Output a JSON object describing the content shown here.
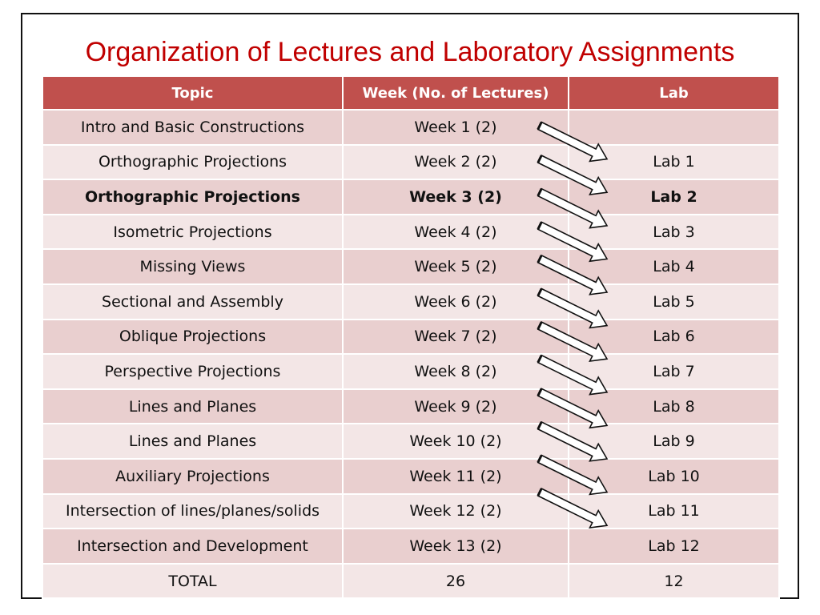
{
  "title": "Organization of Lectures and Laboratory Assignments",
  "table": {
    "headers": [
      "Topic",
      "Week (No. of Lectures)",
      "Lab"
    ],
    "rows": [
      {
        "topic": "Intro and Basic Constructions",
        "week": "Week 1 (2)",
        "lab": ""
      },
      {
        "topic": "Orthographic Projections",
        "week": "Week 2 (2)",
        "lab": "Lab 1"
      },
      {
        "topic": "Orthographic Projections",
        "week": "Week 3 (2)",
        "lab": "Lab 2",
        "bold": true
      },
      {
        "topic": "Isometric Projections",
        "week": "Week 4 (2)",
        "lab": "Lab 3"
      },
      {
        "topic": "Missing Views",
        "week": "Week 5 (2)",
        "lab": "Lab 4"
      },
      {
        "topic": "Sectional and Assembly",
        "week": "Week 6 (2)",
        "lab": "Lab 5"
      },
      {
        "topic": "Oblique Projections",
        "week": "Week 7 (2)",
        "lab": "Lab 6"
      },
      {
        "topic": "Perspective Projections",
        "week": "Week 8 (2)",
        "lab": "Lab 7"
      },
      {
        "topic": "Lines and Planes",
        "week": "Week 9 (2)",
        "lab": "Lab 8"
      },
      {
        "topic": "Lines and Planes",
        "week": "Week 10 (2)",
        "lab": "Lab 9"
      },
      {
        "topic": "Auxiliary Projections",
        "week": "Week 11 (2)",
        "lab": "Lab 10"
      },
      {
        "topic": "Intersection of lines/planes/solids",
        "week": "Week 12 (2)",
        "lab": "Lab 11"
      },
      {
        "topic": "Intersection and Development",
        "week": "Week 13 (2)",
        "lab": "Lab 12"
      },
      {
        "topic": "TOTAL",
        "week": "26",
        "lab": "12"
      }
    ]
  },
  "colors": {
    "title": "#c00000",
    "header_bg": "#c0504d",
    "row_dark": "#e9cfcf",
    "row_light": "#f3e6e6"
  },
  "arrow_icon": "week-to-lab-arrow-icon"
}
